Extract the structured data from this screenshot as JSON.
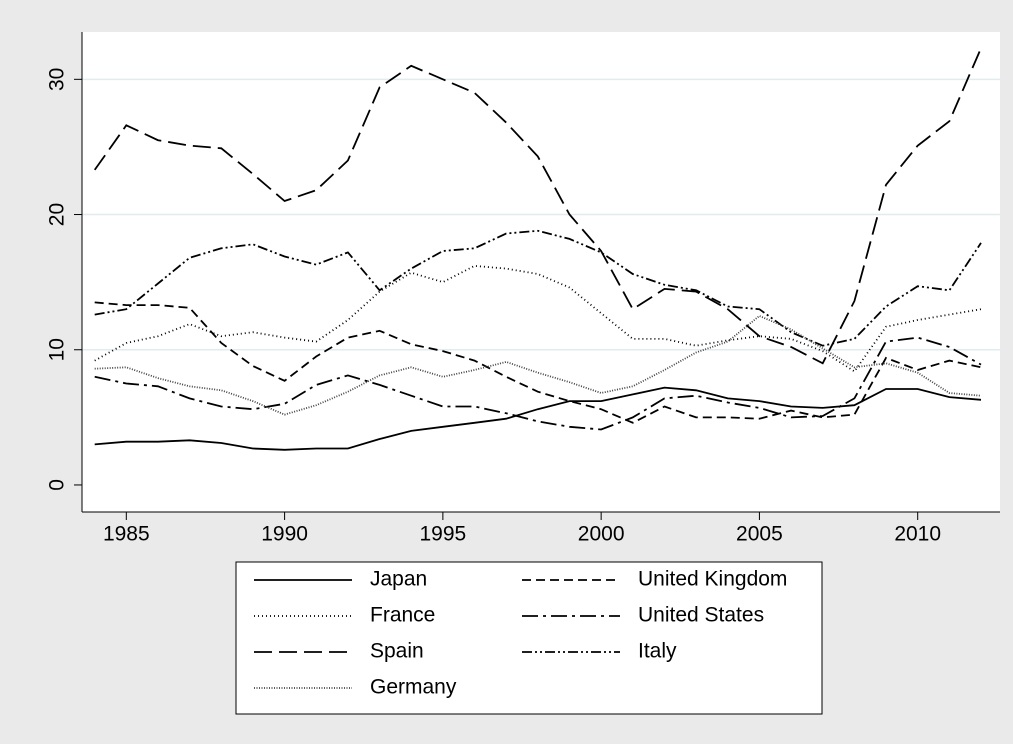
{
  "chart_data": {
    "type": "line",
    "x": [
      1984,
      1985,
      1986,
      1987,
      1988,
      1989,
      1990,
      1991,
      1992,
      1993,
      1994,
      1995,
      1996,
      1997,
      1998,
      1999,
      2000,
      2001,
      2002,
      2003,
      2004,
      2005,
      2006,
      2007,
      2008,
      2009,
      2010,
      2011,
      2012
    ],
    "series": [
      {
        "name": "Japan",
        "color": "#000000",
        "dash": "none",
        "values": [
          3.0,
          3.2,
          3.2,
          3.3,
          3.1,
          2.7,
          2.6,
          2.7,
          2.7,
          3.4,
          4.0,
          4.3,
          4.6,
          4.9,
          5.6,
          6.2,
          6.2,
          6.7,
          7.2,
          7.0,
          6.4,
          6.2,
          5.8,
          5.7,
          5.9,
          7.1,
          7.1,
          6.5,
          6.3
        ]
      },
      {
        "name": "United Kingdom",
        "color": "#000000",
        "dash": "9 5",
        "values": [
          13.5,
          13.3,
          13.3,
          13.1,
          10.5,
          8.8,
          7.7,
          9.5,
          10.9,
          11.4,
          10.4,
          9.9,
          9.2,
          8.0,
          6.9,
          6.2,
          5.6,
          4.6,
          5.8,
          5.0,
          5.0,
          4.9,
          5.5,
          5.0,
          5.2,
          9.4,
          8.5,
          9.2,
          8.7
        ]
      },
      {
        "name": "France",
        "color": "#000000",
        "dash": "1 3",
        "values": [
          9.2,
          10.5,
          11.0,
          11.9,
          11.0,
          11.3,
          10.9,
          10.6,
          12.2,
          14.3,
          15.7,
          15.0,
          16.2,
          16.0,
          15.6,
          14.6,
          12.7,
          10.8,
          10.8,
          10.3,
          10.7,
          11.0,
          10.8,
          9.9,
          8.4,
          11.7,
          12.2,
          12.6,
          13.0
        ]
      },
      {
        "name": "United States",
        "color": "#000000",
        "dash": "16 5 3 5",
        "values": [
          8.0,
          7.5,
          7.3,
          6.4,
          5.8,
          5.6,
          6.0,
          7.4,
          8.1,
          7.4,
          6.6,
          5.8,
          5.8,
          5.3,
          4.7,
          4.3,
          4.1,
          5.0,
          6.4,
          6.6,
          6.1,
          5.7,
          5.0,
          5.1,
          6.4,
          10.6,
          10.9,
          10.2,
          8.9
        ]
      },
      {
        "name": "Spain",
        "color": "#000000",
        "dash": "18 7",
        "values": [
          23.3,
          26.6,
          25.5,
          25.1,
          24.9,
          23.0,
          21.0,
          21.8,
          24.0,
          29.4,
          31.0,
          30.0,
          29.0,
          26.8,
          24.3,
          20.0,
          17.3,
          13.0,
          14.5,
          14.3,
          13.0,
          11.0,
          10.2,
          9.0,
          13.6,
          22.2,
          25.1,
          26.9,
          32.3
        ]
      },
      {
        "name": "Italy",
        "color": "#000000",
        "dash": "10 3 2 3 2 3",
        "values": [
          12.6,
          13.0,
          14.9,
          16.8,
          17.5,
          17.8,
          16.9,
          16.3,
          17.2,
          14.4,
          16.0,
          17.3,
          17.5,
          18.6,
          18.8,
          18.2,
          17.2,
          15.6,
          14.8,
          14.4,
          13.2,
          13.0,
          11.3,
          10.3,
          10.8,
          13.2,
          14.7,
          14.4,
          17.9
        ]
      },
      {
        "name": "Germany",
        "color": "#444444",
        "dash": "1 1.5",
        "values": [
          8.6,
          8.7,
          7.9,
          7.3,
          7.0,
          6.2,
          5.2,
          5.9,
          6.9,
          8.1,
          8.7,
          8.0,
          8.5,
          9.1,
          8.3,
          7.6,
          6.8,
          7.3,
          8.5,
          9.8,
          10.6,
          12.5,
          11.5,
          10.1,
          8.7,
          9.0,
          8.3,
          6.8,
          6.6
        ]
      }
    ],
    "xlim": [
      1983.6,
      2012.6
    ],
    "xticks": [
      1985,
      1990,
      1995,
      2000,
      2005,
      2010
    ],
    "ylim": [
      -2,
      33.5
    ],
    "yticks": [
      0,
      10,
      20,
      30
    ],
    "grid": true
  }
}
